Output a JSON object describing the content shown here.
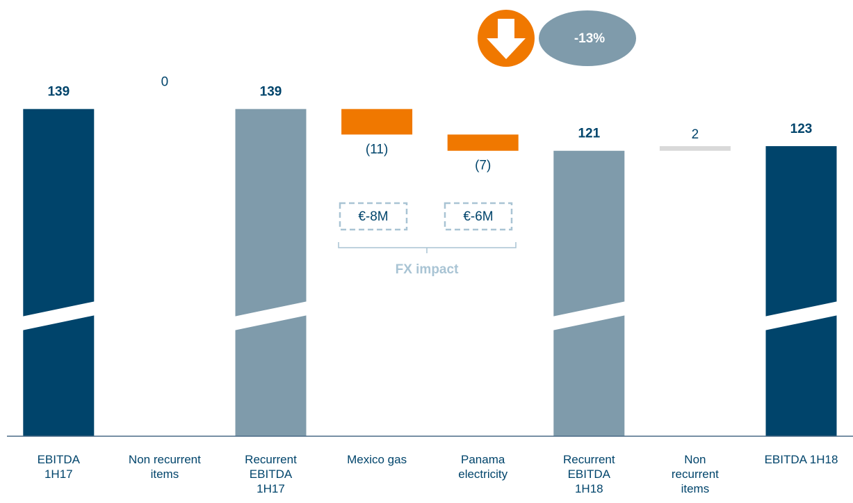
{
  "chart_data": {
    "type": "waterfall",
    "categories": [
      "EBITDA 1H17",
      "Non recurrent items",
      "Recurrent EBITDA 1H17",
      "Mexico gas",
      "Panama electricity",
      "Recurrent EBITDA 1H18",
      "Non recurrent items",
      "EBITDA 1H18"
    ],
    "values": [
      139,
      0,
      139,
      -11,
      -7,
      121,
      2,
      123
    ],
    "value_labels": [
      "139",
      "0",
      "139",
      "(11)",
      "(7)",
      "121",
      "2",
      "123"
    ],
    "kinds": [
      "total",
      "delta",
      "total",
      "delta",
      "delta",
      "total",
      "delta",
      "total"
    ],
    "colors": [
      "#00446b",
      "#d9d9d9",
      "#7f9bab",
      "#f07800",
      "#f07800",
      "#7f9bab",
      "#d9d9d9",
      "#00446b"
    ],
    "ylim": [
      -2,
      150
    ],
    "change_label": "-13%",
    "fx_boxes": [
      "€-8M",
      "€-6M"
    ],
    "fx_label": "FX impact"
  }
}
